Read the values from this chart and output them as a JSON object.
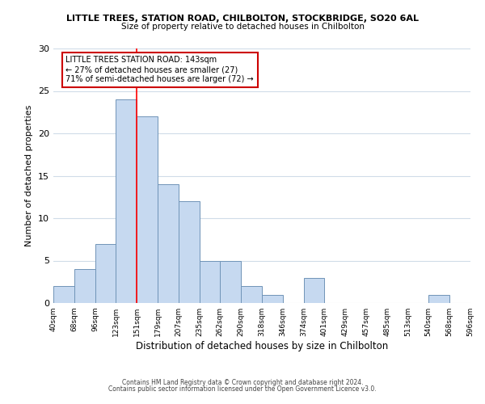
{
  "title1": "LITTLE TREES, STATION ROAD, CHILBOLTON, STOCKBRIDGE, SO20 6AL",
  "title2": "Size of property relative to detached houses in Chilbolton",
  "xlabel": "Distribution of detached houses by size in Chilbolton",
  "ylabel": "Number of detached properties",
  "bin_edges": [
    40,
    68,
    96,
    123,
    151,
    179,
    207,
    235,
    262,
    290,
    318,
    346,
    374,
    401,
    429,
    457,
    485,
    513,
    540,
    568,
    596
  ],
  "counts": [
    2,
    4,
    7,
    24,
    22,
    14,
    12,
    5,
    5,
    2,
    1,
    0,
    3,
    0,
    0,
    0,
    0,
    0,
    1,
    0
  ],
  "bar_color": "#c6d9f0",
  "bar_edge_color": "#7094b8",
  "reference_line_x": 151,
  "ylim": [
    0,
    30
  ],
  "yticks": [
    0,
    5,
    10,
    15,
    20,
    25,
    30
  ],
  "annotation_title": "LITTLE TREES STATION ROAD: 143sqm",
  "annotation_line1": "← 27% of detached houses are smaller (27)",
  "annotation_line2": "71% of semi-detached houses are larger (72) →",
  "annotation_box_color": "#ffffff",
  "annotation_box_edge": "#cc0000",
  "footer1": "Contains HM Land Registry data © Crown copyright and database right 2024.",
  "footer2": "Contains public sector information licensed under the Open Government Licence v3.0.",
  "background_color": "#ffffff",
  "grid_color": "#d0dce8"
}
